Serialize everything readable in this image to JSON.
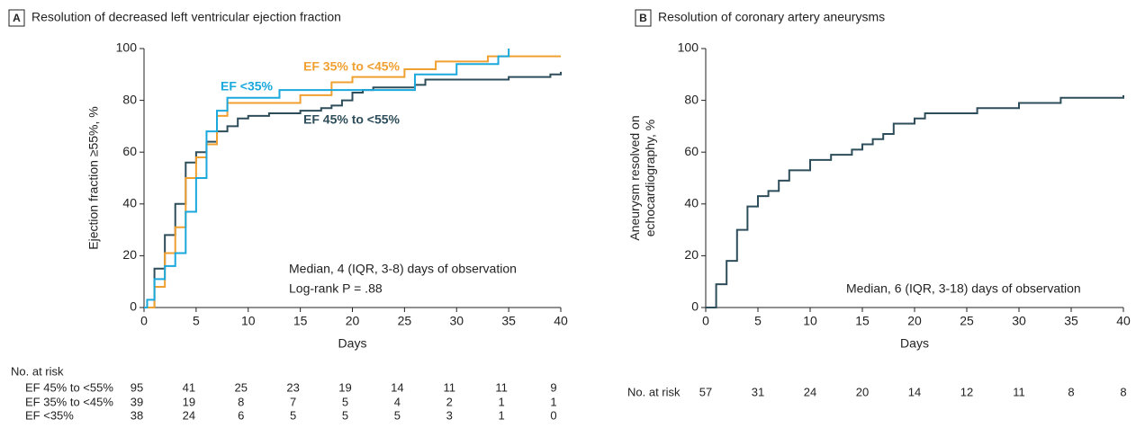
{
  "chart_data": [
    {
      "type": "step",
      "panel": "A",
      "title": "Resolution of decreased left ventricular ejection fraction",
      "x_label": "Days",
      "y_label": [
        "Ejection fraction ≥55%, %"
      ],
      "xlim": [
        0,
        40
      ],
      "xticks": [
        0,
        5,
        10,
        15,
        20,
        25,
        30,
        35,
        40
      ],
      "ylim": [
        0,
        100
      ],
      "yticks": [
        0,
        20,
        40,
        60,
        80,
        100
      ],
      "series": [
        {
          "name": "EF 45% to <55%",
          "color": "#2e4d5a",
          "x": [
            0,
            1,
            2,
            3,
            4,
            5,
            6,
            7,
            8,
            9,
            10,
            12,
            15,
            17,
            18,
            19,
            20,
            21,
            22,
            26,
            27,
            35,
            39,
            40
          ],
          "values": [
            0,
            15,
            28,
            40,
            56,
            60,
            64,
            68,
            70,
            73,
            74,
            75,
            76,
            77,
            78,
            80,
            83,
            84,
            85,
            86,
            88,
            89,
            90,
            91
          ]
        },
        {
          "name": "EF 35% to <45%",
          "color": "#f0a030",
          "x": [
            0,
            1,
            2,
            3,
            4,
            5,
            6,
            7,
            8,
            15,
            18,
            20,
            25,
            28,
            33,
            40
          ],
          "values": [
            0,
            8,
            21,
            31,
            50,
            58,
            63,
            74,
            79,
            82,
            87,
            89,
            92,
            95,
            97,
            97
          ]
        },
        {
          "name": "EF <35%",
          "color": "#1aa8dd",
          "x": [
            0,
            0.3,
            1,
            2,
            3,
            4,
            5,
            6,
            7,
            8,
            13,
            26,
            30,
            34,
            35
          ],
          "values": [
            0,
            3,
            11,
            16,
            21,
            37,
            50,
            68,
            76,
            81,
            84,
            90,
            94,
            97,
            100
          ]
        }
      ],
      "annotations": [
        "Median, 4 (IQR, 3-8) days of observation",
        "Log-rank P = .88"
      ],
      "risk_table": {
        "title": "No. at risk",
        "rows": [
          {
            "name": "EF 45% to <55%",
            "values": [
              95,
              41,
              25,
              23,
              19,
              14,
              11,
              11,
              9
            ]
          },
          {
            "name": "EF 35% to <45%",
            "values": [
              39,
              19,
              8,
              7,
              5,
              4,
              2,
              1,
              1
            ]
          },
          {
            "name": "EF <35%",
            "values": [
              38,
              24,
              6,
              5,
              5,
              5,
              3,
              1,
              0
            ]
          }
        ]
      }
    },
    {
      "type": "step",
      "panel": "B",
      "title": "Resolution of coronary artery aneurysms",
      "x_label": "Days",
      "y_label": [
        "Aneurysm resolved on",
        "echocardiography, %"
      ],
      "xlim": [
        0,
        40
      ],
      "xticks": [
        0,
        5,
        10,
        15,
        20,
        25,
        30,
        35,
        40
      ],
      "ylim": [
        0,
        100
      ],
      "yticks": [
        0,
        20,
        40,
        60,
        80,
        100
      ],
      "series": [
        {
          "color": "#2e4d5a",
          "x": [
            0,
            1,
            2,
            3,
            4,
            5,
            6,
            7,
            8,
            10,
            12,
            14,
            15,
            16,
            17,
            18,
            20,
            21,
            26,
            30,
            34,
            40
          ],
          "values": [
            0,
            9,
            18,
            30,
            39,
            43,
            45,
            49,
            53,
            57,
            59,
            61,
            63,
            65,
            67,
            71,
            73,
            75,
            77,
            79,
            81,
            82
          ]
        }
      ],
      "annotations": [
        "Median, 6 (IQR, 3-18) days of observation"
      ],
      "risk_table": {
        "title": "No. at risk",
        "rows": [
          {
            "values": [
              57,
              31,
              24,
              20,
              14,
              12,
              11,
              8,
              8
            ]
          }
        ]
      }
    }
  ]
}
